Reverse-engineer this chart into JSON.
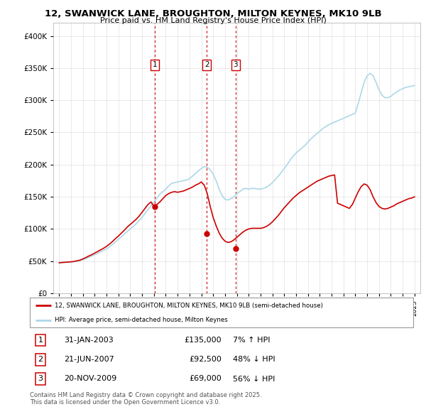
{
  "title": "12, SWANWICK LANE, BROUGHTON, MILTON KEYNES, MK10 9LB",
  "subtitle": "Price paid vs. HM Land Registry's House Price Index (HPI)",
  "legend_line1": "12, SWANWICK LANE, BROUGHTON, MILTON KEYNES, MK10 9LB (semi-detached house)",
  "legend_line2": "HPI: Average price, semi-detached house, Milton Keynes",
  "footer": "Contains HM Land Registry data © Crown copyright and database right 2025.\nThis data is licensed under the Open Government Licence v3.0.",
  "transactions": [
    {
      "num": 1,
      "date": "31-JAN-2003",
      "price": 135000,
      "pct": "7% ↑ HPI"
    },
    {
      "num": 2,
      "date": "21-JUN-2007",
      "price": 92500,
      "pct": "48% ↓ HPI"
    },
    {
      "num": 3,
      "date": "20-NOV-2009",
      "price": 69000,
      "pct": "56% ↓ HPI"
    }
  ],
  "vline_x": [
    2003.08,
    2007.47,
    2009.89
  ],
  "marker_prices": [
    135000,
    92500,
    69000
  ],
  "hpi_color": "#add8e6",
  "price_color": "#cc0000",
  "vline_color": "#cc0000",
  "ylim": [
    0,
    420000
  ],
  "yticks": [
    0,
    50000,
    100000,
    150000,
    200000,
    250000,
    300000,
    350000,
    400000
  ],
  "xlim": [
    1994.5,
    2025.5
  ],
  "xticks": [
    1995,
    1996,
    1997,
    1998,
    1999,
    2000,
    2001,
    2002,
    2003,
    2004,
    2005,
    2006,
    2007,
    2008,
    2009,
    2010,
    2011,
    2012,
    2013,
    2014,
    2015,
    2016,
    2017,
    2018,
    2019,
    2020,
    2021,
    2022,
    2023,
    2024,
    2025
  ],
  "hpi_data_x": [
    1995.0,
    1995.25,
    1995.5,
    1995.75,
    1996.0,
    1996.25,
    1996.5,
    1996.75,
    1997.0,
    1997.25,
    1997.5,
    1997.75,
    1998.0,
    1998.25,
    1998.5,
    1998.75,
    1999.0,
    1999.25,
    1999.5,
    1999.75,
    2000.0,
    2000.25,
    2000.5,
    2000.75,
    2001.0,
    2001.25,
    2001.5,
    2001.75,
    2002.0,
    2002.25,
    2002.5,
    2002.75,
    2003.0,
    2003.25,
    2003.5,
    2003.75,
    2004.0,
    2004.25,
    2004.5,
    2004.75,
    2005.0,
    2005.25,
    2005.5,
    2005.75,
    2006.0,
    2006.25,
    2006.5,
    2006.75,
    2007.0,
    2007.25,
    2007.5,
    2007.75,
    2008.0,
    2008.25,
    2008.5,
    2008.75,
    2009.0,
    2009.25,
    2009.5,
    2009.75,
    2010.0,
    2010.25,
    2010.5,
    2010.75,
    2011.0,
    2011.25,
    2011.5,
    2011.75,
    2012.0,
    2012.25,
    2012.5,
    2012.75,
    2013.0,
    2013.25,
    2013.5,
    2013.75,
    2014.0,
    2014.25,
    2014.5,
    2014.75,
    2015.0,
    2015.25,
    2015.5,
    2015.75,
    2016.0,
    2016.25,
    2016.5,
    2016.75,
    2017.0,
    2017.25,
    2017.5,
    2017.75,
    2018.0,
    2018.25,
    2018.5,
    2018.75,
    2019.0,
    2019.25,
    2019.5,
    2019.75,
    2020.0,
    2020.25,
    2020.5,
    2020.75,
    2021.0,
    2021.25,
    2021.5,
    2021.75,
    2022.0,
    2022.25,
    2022.5,
    2022.75,
    2023.0,
    2023.25,
    2023.5,
    2023.75,
    2024.0,
    2024.25,
    2024.5,
    2024.75,
    2025.0
  ],
  "hpi_data_y": [
    47000,
    47500,
    47800,
    48000,
    48500,
    49000,
    49800,
    50500,
    52000,
    54000,
    56000,
    58000,
    60000,
    62000,
    64500,
    66500,
    69000,
    72000,
    76000,
    80000,
    84000,
    88000,
    92000,
    96000,
    100000,
    104000,
    108000,
    113000,
    118000,
    124000,
    130000,
    136000,
    142000,
    148000,
    154000,
    158000,
    162000,
    167000,
    171000,
    172000,
    173000,
    174000,
    175000,
    176000,
    178000,
    182000,
    186000,
    190000,
    194000,
    197000,
    196000,
    192000,
    185000,
    175000,
    162000,
    152000,
    146000,
    145000,
    147000,
    150000,
    155000,
    158000,
    162000,
    163000,
    162000,
    163000,
    163000,
    162000,
    162000,
    163000,
    165000,
    168000,
    172000,
    177000,
    182000,
    188000,
    194000,
    200000,
    207000,
    213000,
    218000,
    222000,
    226000,
    230000,
    235000,
    240000,
    244000,
    248000,
    252000,
    256000,
    259000,
    262000,
    264000,
    266000,
    268000,
    270000,
    272000,
    274000,
    276000,
    278000,
    280000,
    295000,
    312000,
    328000,
    338000,
    342000,
    338000,
    328000,
    316000,
    308000,
    304000,
    304000,
    306000,
    310000,
    313000,
    316000,
    318000,
    320000,
    321000,
    322000,
    323000
  ],
  "price_data_x": [
    1995.0,
    1995.25,
    1995.5,
    1995.75,
    1996.0,
    1996.25,
    1996.5,
    1996.75,
    1997.0,
    1997.25,
    1997.5,
    1997.75,
    1998.0,
    1998.25,
    1998.5,
    1998.75,
    1999.0,
    1999.25,
    1999.5,
    1999.75,
    2000.0,
    2000.25,
    2000.5,
    2000.75,
    2001.0,
    2001.25,
    2001.5,
    2001.75,
    2002.0,
    2002.25,
    2002.5,
    2002.75,
    2003.0,
    2003.25,
    2003.5,
    2003.75,
    2004.0,
    2004.25,
    2004.5,
    2004.75,
    2005.0,
    2005.25,
    2005.5,
    2005.75,
    2006.0,
    2006.25,
    2006.5,
    2006.75,
    2007.0,
    2007.25,
    2007.5,
    2007.75,
    2008.0,
    2008.25,
    2008.5,
    2008.75,
    2009.0,
    2009.25,
    2009.5,
    2009.75,
    2010.0,
    2010.25,
    2010.5,
    2010.75,
    2011.0,
    2011.25,
    2011.5,
    2011.75,
    2012.0,
    2012.25,
    2012.5,
    2012.75,
    2013.0,
    2013.25,
    2013.5,
    2013.75,
    2014.0,
    2014.25,
    2014.5,
    2014.75,
    2015.0,
    2015.25,
    2015.5,
    2015.75,
    2016.0,
    2016.25,
    2016.5,
    2016.75,
    2017.0,
    2017.25,
    2017.5,
    2017.75,
    2018.0,
    2018.25,
    2018.5,
    2018.75,
    2019.0,
    2019.25,
    2019.5,
    2019.75,
    2020.0,
    2020.25,
    2020.5,
    2020.75,
    2021.0,
    2021.25,
    2021.5,
    2021.75,
    2022.0,
    2022.25,
    2022.5,
    2022.75,
    2023.0,
    2023.25,
    2023.5,
    2023.75,
    2024.0,
    2024.25,
    2024.5,
    2024.75,
    2025.0
  ],
  "price_data_y": [
    47500,
    48000,
    48300,
    48600,
    49000,
    49500,
    50500,
    51500,
    53500,
    55500,
    58000,
    60000,
    62500,
    65000,
    67500,
    70000,
    73000,
    76500,
    80500,
    85000,
    89000,
    93500,
    98000,
    103000,
    107000,
    111000,
    115000,
    120000,
    126000,
    132000,
    138000,
    142000,
    135000,
    138000,
    142000,
    147000,
    152000,
    155000,
    157000,
    158000,
    157000,
    158000,
    159000,
    161000,
    163000,
    165000,
    168000,
    170000,
    173000,
    168000,
    155000,
    135000,
    118000,
    105000,
    94000,
    86000,
    81000,
    79000,
    80000,
    83000,
    87000,
    91000,
    95000,
    98000,
    100000,
    101000,
    101000,
    101000,
    101000,
    102000,
    104000,
    107000,
    111000,
    116000,
    121000,
    127000,
    133000,
    138000,
    143000,
    148000,
    152000,
    156000,
    159000,
    162000,
    165000,
    168000,
    171000,
    174000,
    176000,
    178000,
    180000,
    182000,
    183000,
    184000,
    140000,
    138000,
    136000,
    134000,
    132000,
    138000,
    148000,
    158000,
    166000,
    170000,
    168000,
    161000,
    150000,
    141000,
    135000,
    132000,
    131000,
    132000,
    134000,
    136000,
    139000,
    141000,
    143000,
    145000,
    147000,
    148000,
    150000
  ]
}
